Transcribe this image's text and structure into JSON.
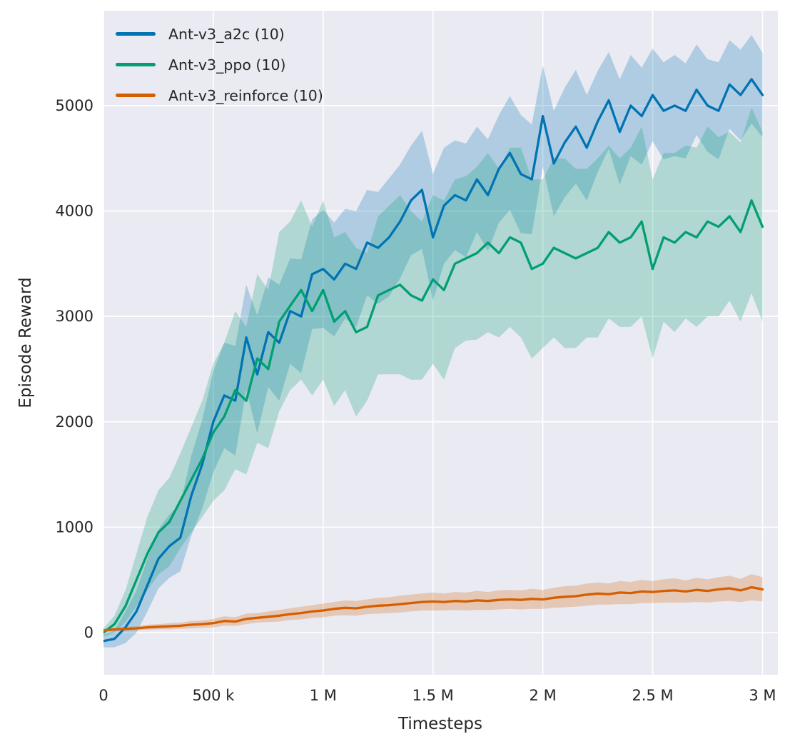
{
  "chart_data": {
    "type": "line",
    "title": "",
    "xlabel": "Timesteps",
    "ylabel": "Episode Reward",
    "grid": true,
    "legend_position": "upper-left",
    "plot_bg_color": "#eaeaf2",
    "grid_color": "#ffffff",
    "text_color": "#262626",
    "band_opacity": 0.25,
    "x_range": [
      0,
      3070000
    ],
    "y_range": [
      -400,
      5900
    ],
    "x_ticks": {
      "values": [
        0,
        500000,
        1000000,
        1500000,
        2000000,
        2500000,
        3000000
      ],
      "labels": [
        "0",
        "500 k",
        "1 M",
        "1.5 M",
        "2 M",
        "2.5 M",
        "3 M"
      ]
    },
    "y_ticks": {
      "values": [
        0,
        1000,
        2000,
        3000,
        4000,
        5000
      ],
      "labels": [
        "0",
        "1000",
        "2000",
        "3000",
        "4000",
        "5000"
      ]
    },
    "x": [
      0,
      50000,
      100000,
      150000,
      200000,
      250000,
      300000,
      350000,
      400000,
      450000,
      500000,
      550000,
      600000,
      650000,
      700000,
      750000,
      800000,
      850000,
      900000,
      950000,
      1000000,
      1050000,
      1100000,
      1150000,
      1200000,
      1250000,
      1300000,
      1350000,
      1400000,
      1450000,
      1500000,
      1550000,
      1600000,
      1650000,
      1700000,
      1750000,
      1800000,
      1850000,
      1900000,
      1950000,
      2000000,
      2050000,
      2100000,
      2150000,
      2200000,
      2250000,
      2300000,
      2350000,
      2400000,
      2450000,
      2500000,
      2550000,
      2600000,
      2650000,
      2700000,
      2750000,
      2800000,
      2850000,
      2900000,
      2950000,
      3000000
    ],
    "series": [
      {
        "name": "Ant-v3_a2c (10)",
        "color": "#0173b2",
        "mean": [
          -80,
          -60,
          50,
          200,
          450,
          700,
          820,
          900,
          1300,
          1600,
          2000,
          2250,
          2200,
          2800,
          2450,
          2850,
          2750,
          3050,
          3000,
          3400,
          3450,
          3350,
          3500,
          3450,
          3700,
          3650,
          3750,
          3900,
          4100,
          4200,
          3750,
          4050,
          4150,
          4100,
          4300,
          4150,
          4400,
          4550,
          4350,
          4300,
          4900,
          4450,
          4650,
          4800,
          4600,
          4850,
          5050,
          4750,
          5000,
          4900,
          5100,
          4950,
          5000,
          4950,
          5150,
          5000,
          4950,
          5200,
          5100,
          5250,
          5100
        ],
        "band": [
          60,
          80,
          150,
          200,
          250,
          280,
          300,
          320,
          380,
          420,
          480,
          500,
          520,
          500,
          560,
          520,
          550,
          500,
          540,
          520,
          560,
          540,
          520,
          550,
          500,
          530,
          560,
          540,
          520,
          560,
          600,
          550,
          520,
          540,
          500,
          530,
          510,
          540,
          560,
          520,
          480,
          500,
          520,
          540,
          500,
          480,
          460,
          500,
          480,
          460,
          440,
          460,
          480,
          450,
          430,
          440,
          460,
          420,
          430,
          420,
          400
        ]
      },
      {
        "name": "Ant-v3_ppo (10)",
        "color": "#029e73",
        "mean": [
          0,
          80,
          250,
          500,
          750,
          950,
          1050,
          1250,
          1450,
          1650,
          1900,
          2050,
          2300,
          2200,
          2600,
          2500,
          2950,
          3100,
          3250,
          3050,
          3250,
          2950,
          3050,
          2850,
          2900,
          3200,
          3250,
          3300,
          3200,
          3150,
          3350,
          3250,
          3500,
          3550,
          3600,
          3700,
          3600,
          3750,
          3700,
          3450,
          3500,
          3650,
          3600,
          3550,
          3600,
          3650,
          3800,
          3700,
          3750,
          3900,
          3450,
          3750,
          3700,
          3800,
          3750,
          3900,
          3850,
          3950,
          3800,
          4100,
          3850
        ],
        "band": [
          40,
          80,
          150,
          250,
          350,
          400,
          420,
          450,
          500,
          550,
          650,
          700,
          750,
          700,
          800,
          750,
          850,
          800,
          850,
          800,
          850,
          800,
          750,
          800,
          700,
          750,
          800,
          850,
          800,
          750,
          800,
          850,
          800,
          780,
          820,
          850,
          800,
          850,
          900,
          850,
          800,
          850,
          900,
          850,
          800,
          850,
          820,
          800,
          850,
          900,
          850,
          800,
          850,
          820,
          850,
          900,
          850,
          800,
          850,
          880,
          900
        ]
      },
      {
        "name": "Ant-v3_reinforce (10)",
        "color": "#d55e00",
        "mean": [
          20,
          30,
          35,
          40,
          50,
          55,
          60,
          65,
          75,
          80,
          90,
          110,
          105,
          130,
          140,
          150,
          160,
          175,
          185,
          200,
          210,
          225,
          235,
          230,
          245,
          255,
          260,
          270,
          280,
          290,
          295,
          290,
          300,
          295,
          305,
          300,
          310,
          315,
          310,
          320,
          315,
          330,
          340,
          345,
          360,
          370,
          365,
          380,
          375,
          390,
          385,
          395,
          400,
          390,
          405,
          395,
          410,
          420,
          400,
          430,
          410
        ],
        "band": [
          15,
          15,
          20,
          20,
          25,
          25,
          30,
          30,
          35,
          35,
          40,
          45,
          40,
          50,
          45,
          50,
          55,
          55,
          60,
          60,
          65,
          65,
          70,
          70,
          70,
          75,
          75,
          80,
          80,
          80,
          85,
          80,
          85,
          85,
          90,
          85,
          90,
          90,
          90,
          95,
          90,
          95,
          100,
          100,
          105,
          105,
          100,
          110,
          105,
          110,
          105,
          110,
          115,
          105,
          115,
          110,
          115,
          120,
          110,
          125,
          115
        ]
      }
    ]
  }
}
